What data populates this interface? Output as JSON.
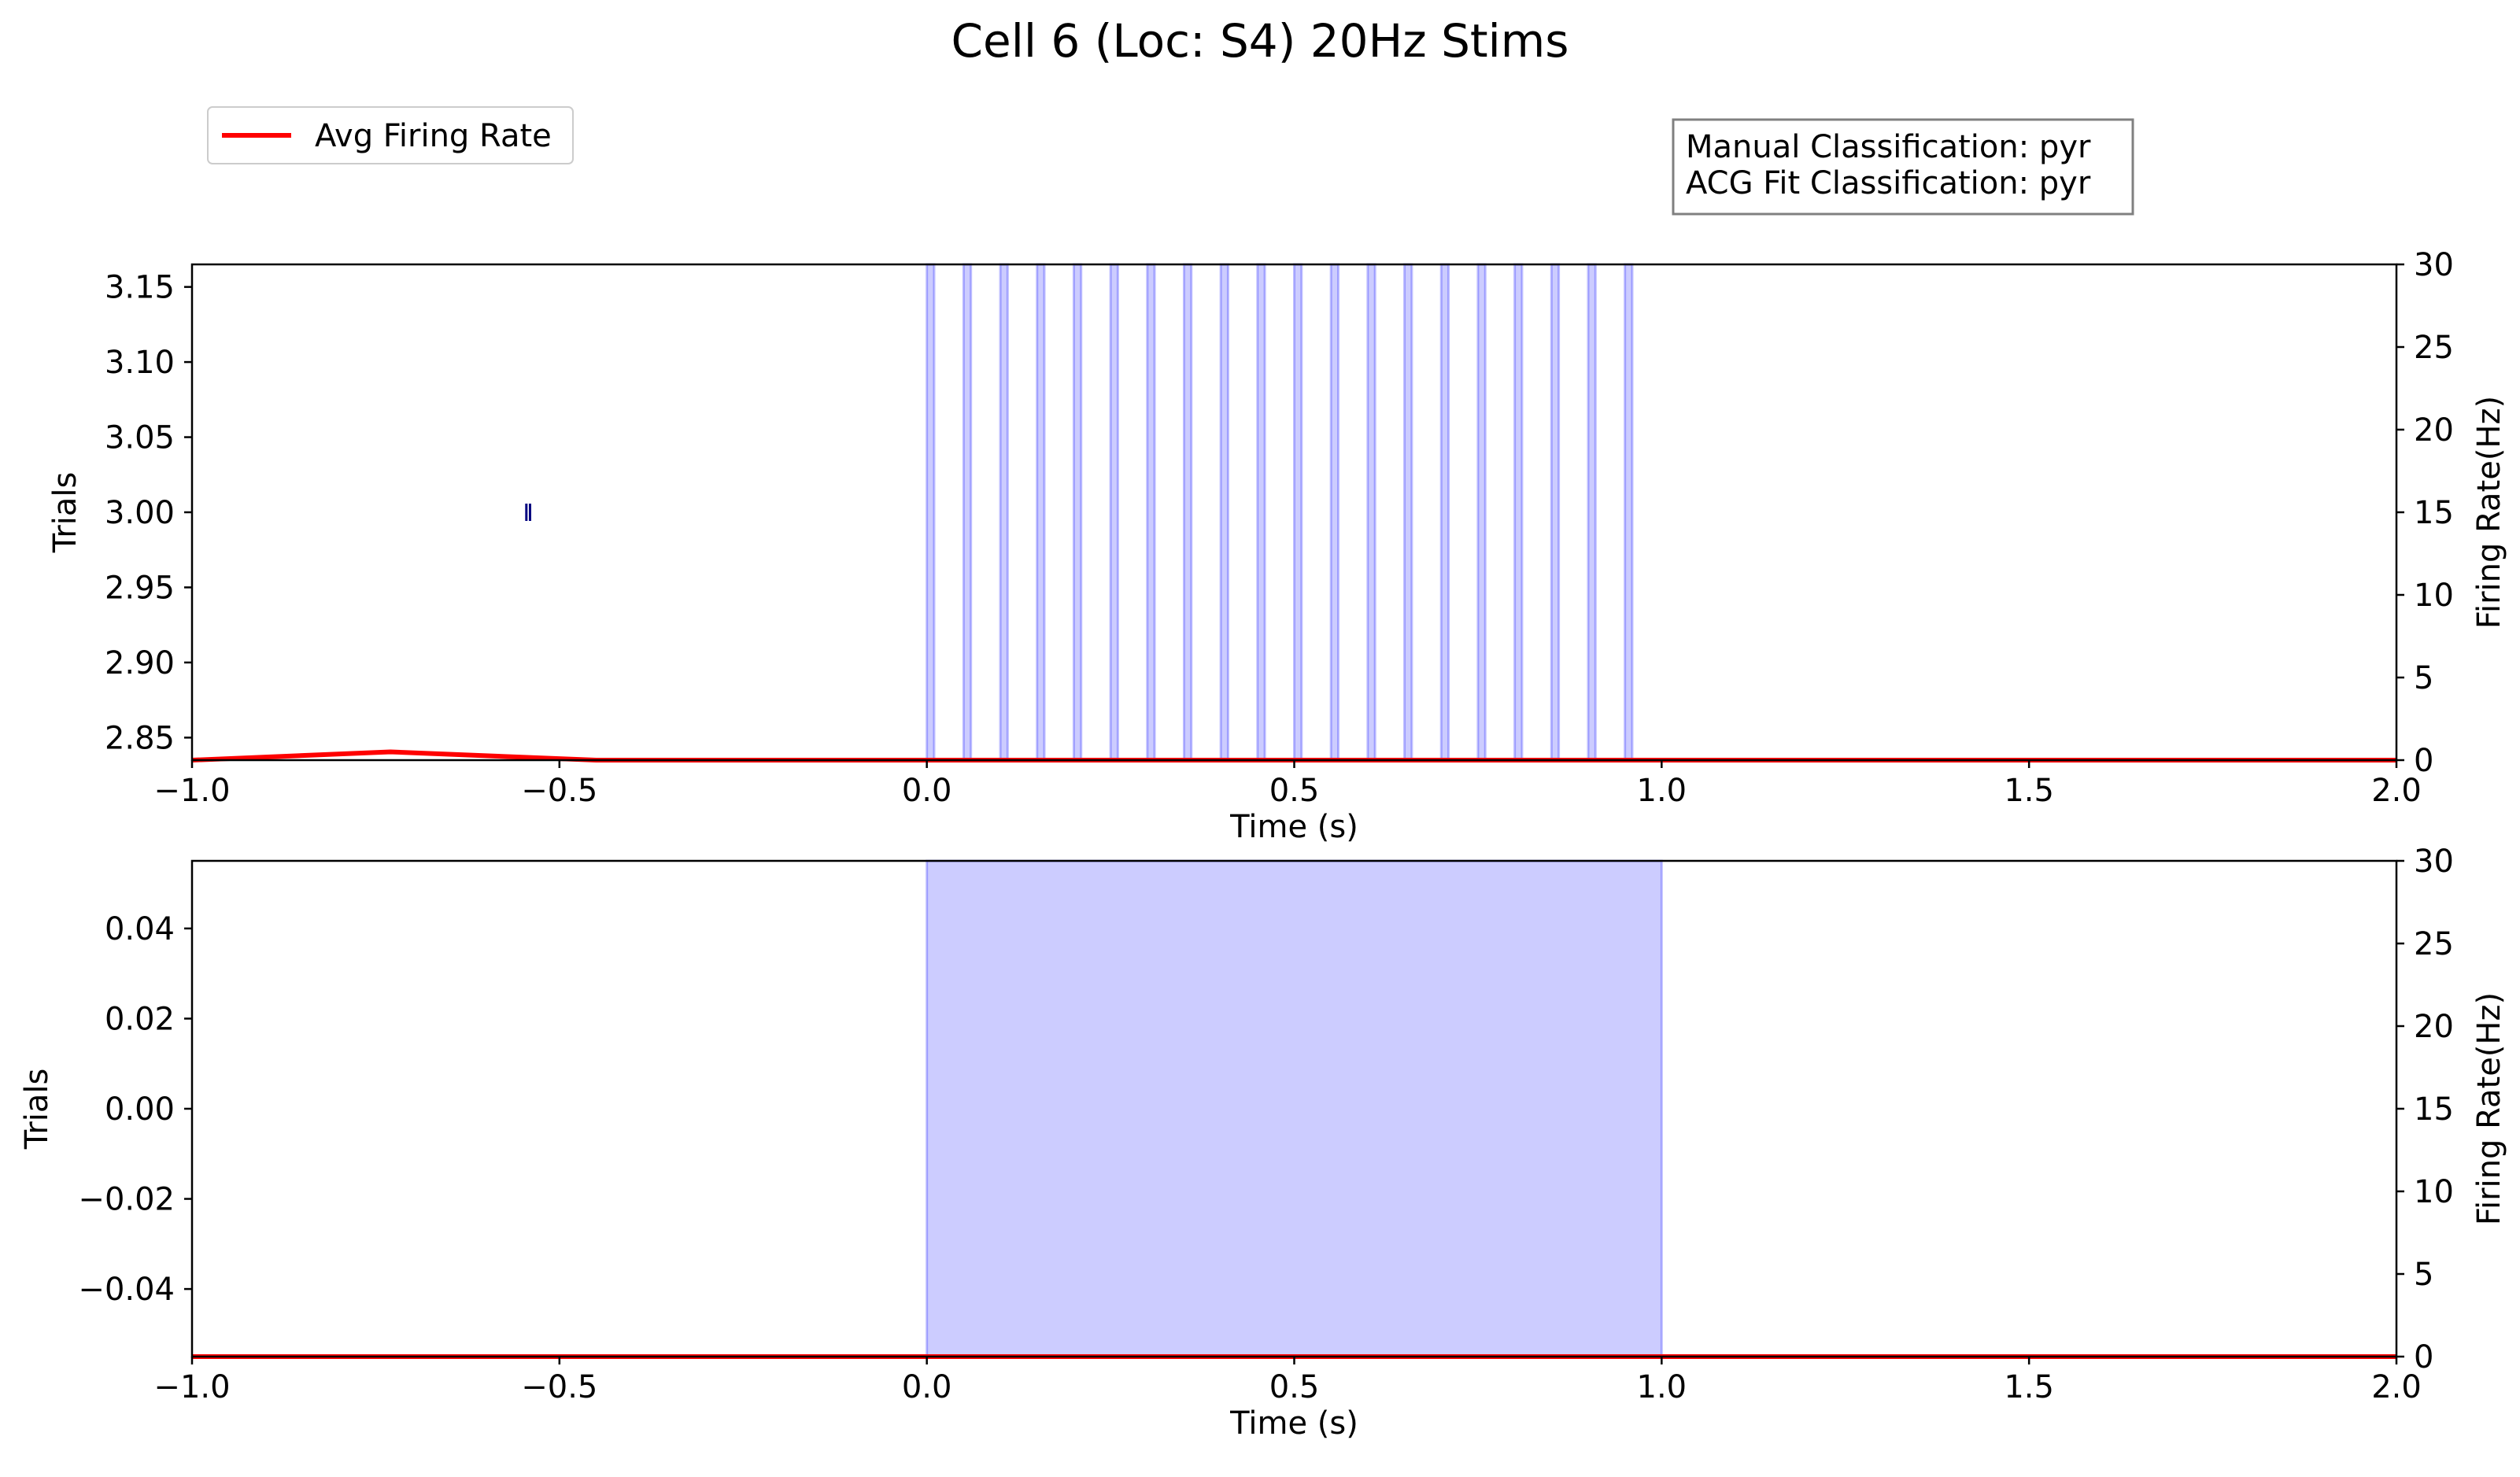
{
  "title": "Cell 6 (Loc: S4) 20Hz Stims",
  "legend": {
    "label": "Avg Firing Rate",
    "color": "#ff0000"
  },
  "info_box": {
    "line1": "Manual Classification: pyr",
    "line2": "ACG Fit Classification: pyr"
  },
  "colors": {
    "stim": "#0000ff",
    "firing": "#ff0000",
    "spike": "#000080"
  },
  "chart_data": [
    {
      "type": "line",
      "name": "top-panel",
      "title": "",
      "xlabel": "Time (s)",
      "ylabel": "Trials",
      "ylabel_right": "Firing Rate(Hz)",
      "xlim": [
        -1.0,
        2.0
      ],
      "ylim": [
        2.835,
        3.165
      ],
      "ylim_right": [
        0,
        30
      ],
      "xticks": [
        -1.0,
        -0.5,
        0.0,
        0.5,
        1.0,
        1.5,
        2.0
      ],
      "xtick_labels": [
        "−1.0",
        "−0.5",
        "0.0",
        "0.5",
        "1.0",
        "1.5",
        "2.0"
      ],
      "yticks": [
        2.85,
        2.9,
        2.95,
        3.0,
        3.05,
        3.1,
        3.15
      ],
      "ytick_labels": [
        "2.85",
        "2.90",
        "2.95",
        "3.00",
        "3.05",
        "3.10",
        "3.15"
      ],
      "yticks_right": [
        0,
        5,
        10,
        15,
        20,
        25,
        30
      ],
      "ytick_labels_right": [
        "0",
        "5",
        "10",
        "15",
        "20",
        "25",
        "30"
      ],
      "stim_pulses": [
        0.0,
        0.05,
        0.1,
        0.15,
        0.2,
        0.25,
        0.3,
        0.35,
        0.4,
        0.45,
        0.5,
        0.55,
        0.6,
        0.65,
        0.7,
        0.75,
        0.8,
        0.85,
        0.9,
        0.95
      ],
      "stim_pulse_width": 0.01,
      "spikes": {
        "trial": 3.0,
        "times": [
          -0.545,
          -0.54
        ]
      },
      "series": [
        {
          "name": "Avg Firing Rate",
          "x": [
            -1.0,
            -0.73,
            -0.45,
            2.0
          ],
          "y": [
            0,
            0.5,
            0,
            0
          ]
        }
      ]
    },
    {
      "type": "line",
      "name": "bottom-panel",
      "title": "",
      "xlabel": "Time (s)",
      "ylabel": "Trials",
      "ylabel_right": "Firing Rate(Hz)",
      "xlim": [
        -1.0,
        2.0
      ],
      "ylim": [
        -0.055,
        0.055
      ],
      "ylim_right": [
        0,
        30
      ],
      "xticks": [
        -1.0,
        -0.5,
        0.0,
        0.5,
        1.0,
        1.5,
        2.0
      ],
      "xtick_labels": [
        "−1.0",
        "−0.5",
        "0.0",
        "0.5",
        "1.0",
        "1.5",
        "2.0"
      ],
      "yticks": [
        -0.04,
        -0.02,
        0.0,
        0.02,
        0.04
      ],
      "ytick_labels": [
        "−0.04",
        "−0.02",
        "0.00",
        "0.02",
        "0.04"
      ],
      "yticks_right": [
        0,
        5,
        10,
        15,
        20,
        25,
        30
      ],
      "ytick_labels_right": [
        "0",
        "5",
        "10",
        "15",
        "20",
        "25",
        "30"
      ],
      "stim_block": [
        0.0,
        1.0
      ],
      "series": [
        {
          "name": "Avg Firing Rate",
          "x": [
            -1.0,
            2.0
          ],
          "y": [
            0,
            0
          ]
        }
      ]
    }
  ]
}
